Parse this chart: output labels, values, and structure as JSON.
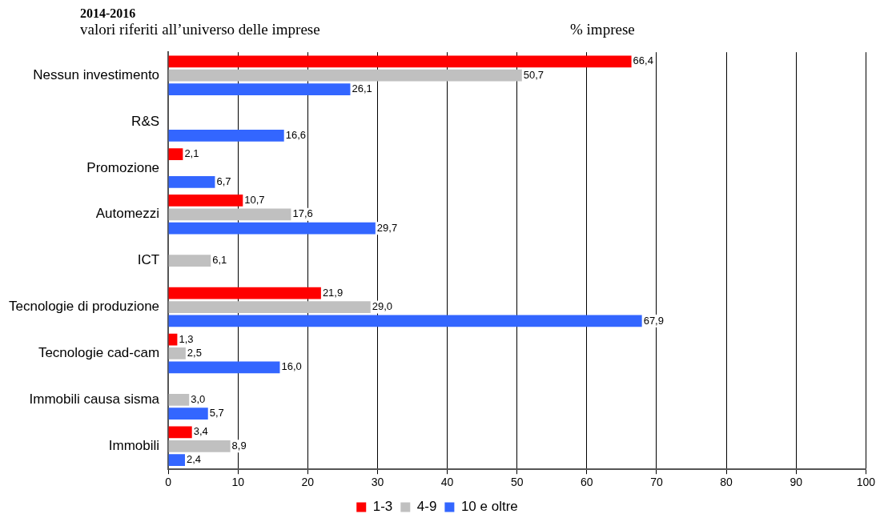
{
  "chart_data": {
    "type": "bar",
    "orientation": "horizontal",
    "title": "2014-2016",
    "subtitle": "valori riferiti all’universo delle imprese",
    "annotations": [
      "% imprese"
    ],
    "categories": [
      "Nessun investimento",
      "R&S",
      "Promozione",
      "Automezzi",
      "ICT",
      "Tecnologie di produzione",
      "Tecnologie cad-cam",
      "Immobili causa sisma",
      "Immobili"
    ],
    "series": [
      {
        "name": "1-3",
        "color": "#ff0000",
        "values": [
          66.4,
          null,
          2.1,
          10.7,
          null,
          21.9,
          1.3,
          null,
          3.4
        ],
        "value_labels": [
          "66,4",
          null,
          "2,1",
          "10,7",
          null,
          "21,9",
          "1,3",
          null,
          "3,4"
        ]
      },
      {
        "name": "4-9",
        "color": "#c0c0c0",
        "values": [
          50.7,
          null,
          null,
          17.6,
          6.1,
          29.0,
          2.5,
          3.0,
          8.9
        ],
        "value_labels": [
          "50,7",
          null,
          null,
          "17,6",
          "6,1",
          "29,0",
          "2,5",
          "3,0",
          "8,9"
        ]
      },
      {
        "name": "10 e oltre",
        "color": "#3366ff",
        "values": [
          26.1,
          16.6,
          6.7,
          29.7,
          null,
          67.9,
          16.0,
          5.7,
          2.4
        ],
        "value_labels": [
          "26,1",
          "16,6",
          "6,7",
          "29,7",
          null,
          "67,9",
          "16,0",
          "5,7",
          "2,4"
        ]
      }
    ],
    "xlim": [
      0,
      100
    ],
    "xticks": [
      0,
      10,
      20,
      30,
      40,
      50,
      60,
      70,
      80,
      90,
      100
    ],
    "grid": "x",
    "legend": "bottom"
  }
}
